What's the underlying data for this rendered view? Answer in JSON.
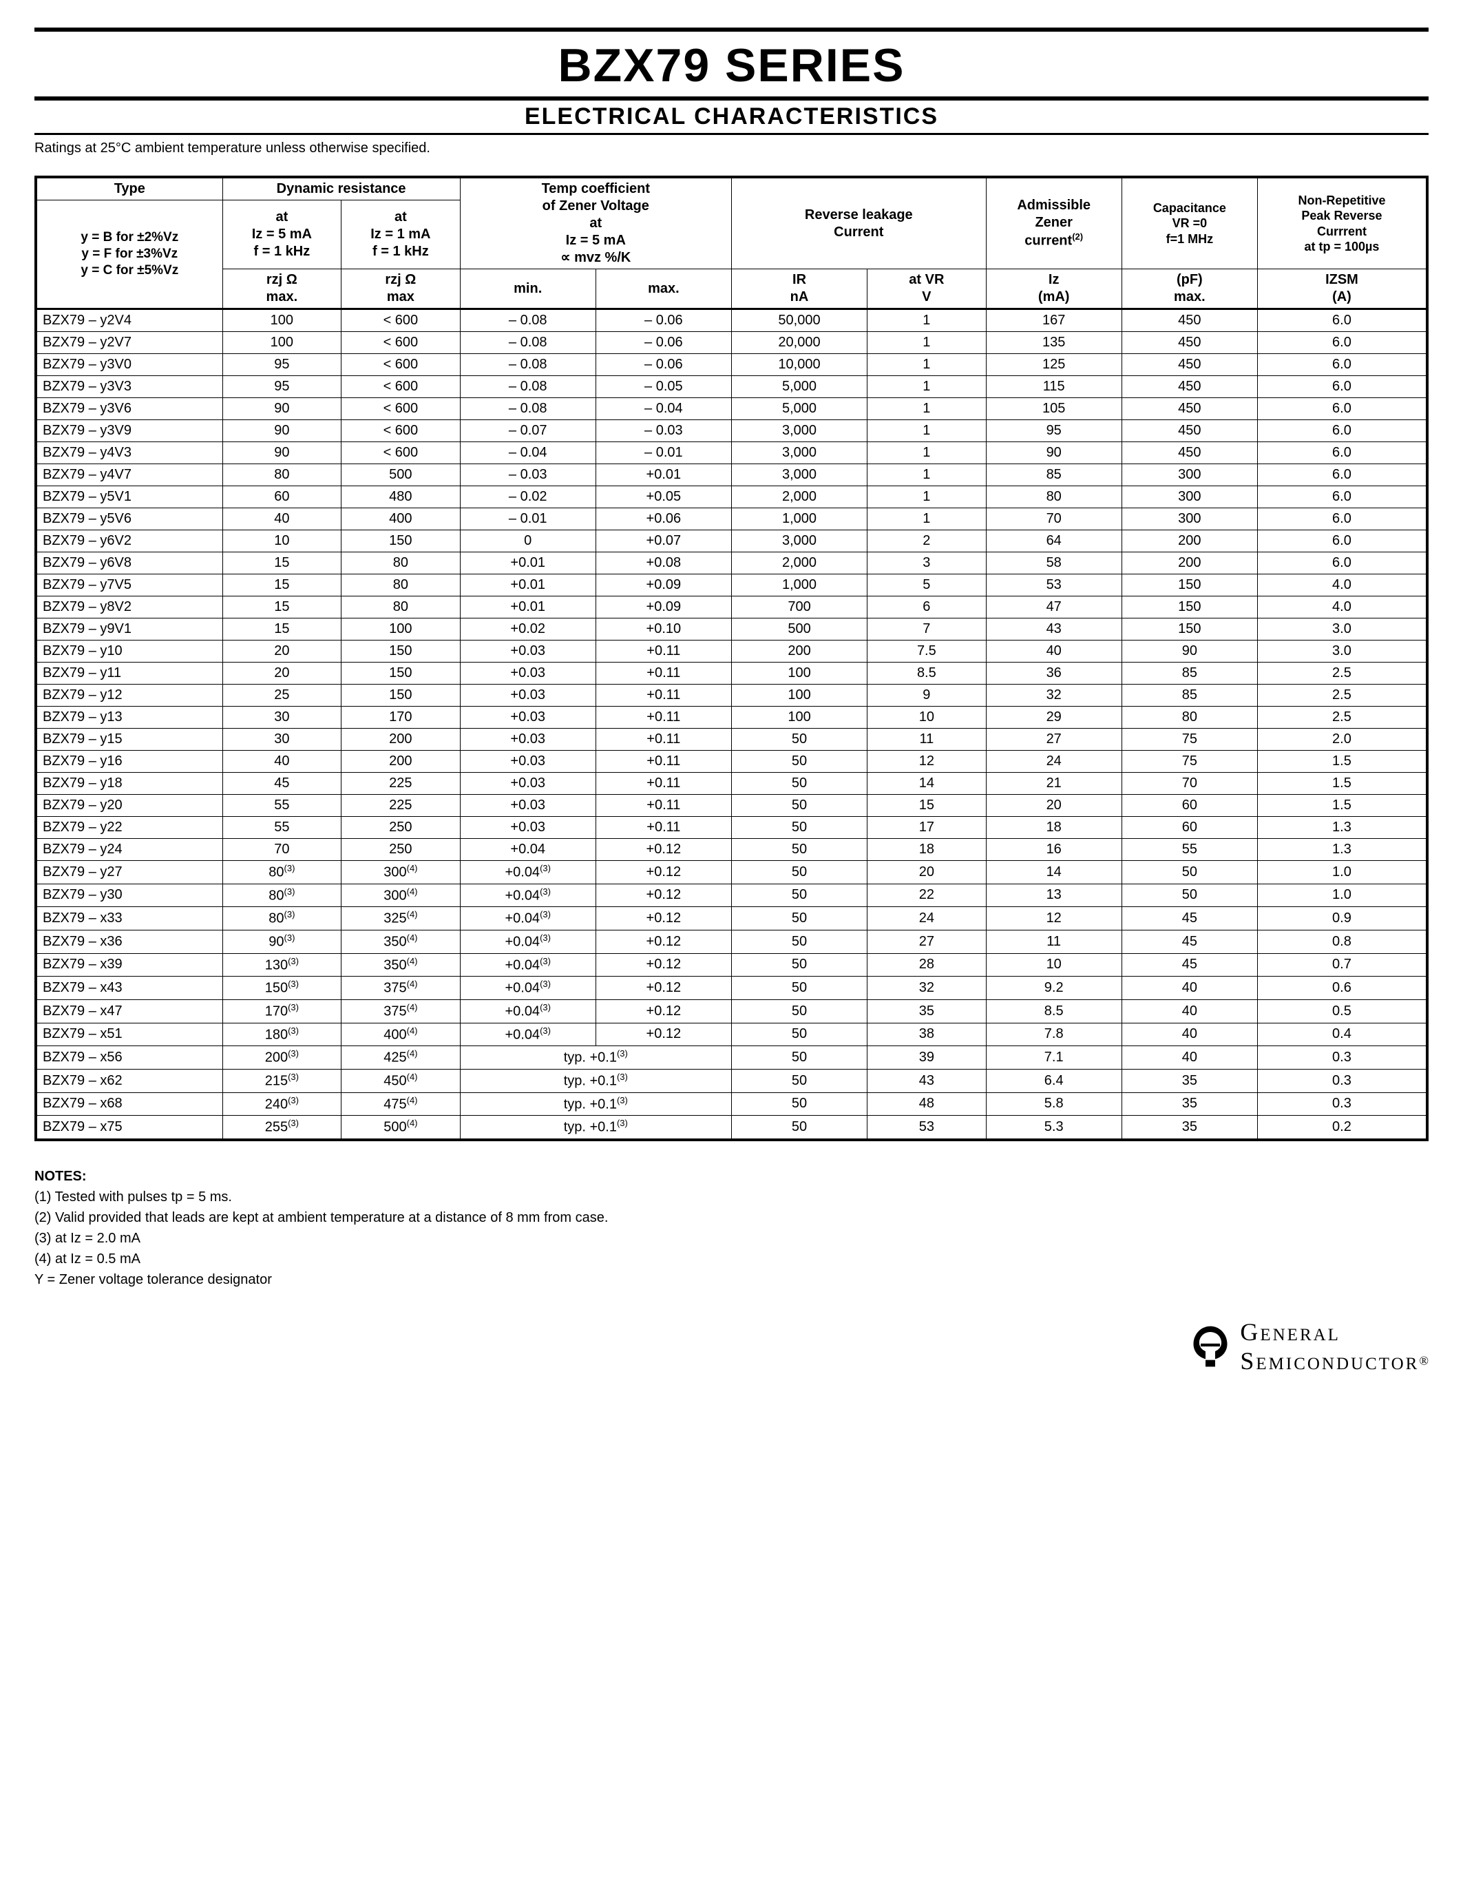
{
  "title": "BZX79 SERIES",
  "subtitle": "ELECTRICAL CHARACTERISTICS",
  "ratings_note": "Ratings at 25°C ambient temperature unless otherwise specified.",
  "headers": {
    "type": "Type",
    "tolerance_b": "y = B for ±2%Vz",
    "tolerance_f": "y = F for ±3%Vz",
    "tolerance_c": "y = C for ±5%Vz",
    "dyn_res": "Dynamic resistance",
    "dyn_at1_l1": "at",
    "dyn_at1_l2": "Iz = 5 mA",
    "dyn_at1_l3": "f = 1 kHz",
    "dyn_at2_l1": "at",
    "dyn_at2_l2": "Iz = 1 mA",
    "dyn_at2_l3": "f = 1 kHz",
    "rzj1": "rzj Ω",
    "rzj1_max": "max.",
    "rzj2": "rzj Ω",
    "rzj2_max": "max",
    "temp_coef": "Temp coefficient",
    "temp_coef2": "of Zener Voltage",
    "temp_at": "at",
    "temp_iz": "Iz = 5 mA",
    "temp_prop": "∝ mvz %/K",
    "temp_min": "min.",
    "temp_max": "max.",
    "rev_leak": "Reverse leakage",
    "rev_leak2": "Current",
    "ir": "IR",
    "ir_unit": "nA",
    "vr": "at VR",
    "vr_unit": "V",
    "adm": "Admissible",
    "adm2": "Zener",
    "adm3": "current",
    "adm_sup": "(2)",
    "iz": "Iz",
    "iz_unit": "(mA)",
    "cap": "Capacitance",
    "cap2": "VR =0",
    "cap3": "f=1 MHz",
    "cap_unit1": "(pF)",
    "cap_unit2": "max.",
    "nrp": "Non-Repetitive",
    "nrp2": "Peak Reverse",
    "nrp3": "Currrent",
    "nrp4": "at tp = 100µs",
    "izsm": "IZSM",
    "izsm_unit": "(A)"
  },
  "rows": [
    {
      "type": "BZX79 – y2V4",
      "r5": "100",
      "r1": "< 600",
      "tmin": "– 0.08",
      "tmax": "– 0.06",
      "ir": "50,000",
      "vr": "1",
      "iz": "167",
      "cap": "450",
      "izsm": "6.0"
    },
    {
      "type": "BZX79 – y2V7",
      "r5": "100",
      "r1": "< 600",
      "tmin": "– 0.08",
      "tmax": "– 0.06",
      "ir": "20,000",
      "vr": "1",
      "iz": "135",
      "cap": "450",
      "izsm": "6.0"
    },
    {
      "type": "BZX79 – y3V0",
      "r5": "95",
      "r1": "< 600",
      "tmin": "– 0.08",
      "tmax": "– 0.06",
      "ir": "10,000",
      "vr": "1",
      "iz": "125",
      "cap": "450",
      "izsm": "6.0"
    },
    {
      "type": "BZX79 – y3V3",
      "r5": "95",
      "r1": "< 600",
      "tmin": "– 0.08",
      "tmax": "– 0.05",
      "ir": "5,000",
      "vr": "1",
      "iz": "115",
      "cap": "450",
      "izsm": "6.0"
    },
    {
      "type": "BZX79 – y3V6",
      "r5": "90",
      "r1": "< 600",
      "tmin": "– 0.08",
      "tmax": "– 0.04",
      "ir": "5,000",
      "vr": "1",
      "iz": "105",
      "cap": "450",
      "izsm": "6.0"
    },
    {
      "type": "BZX79 – y3V9",
      "r5": "90",
      "r1": "< 600",
      "tmin": "– 0.07",
      "tmax": "– 0.03",
      "ir": "3,000",
      "vr": "1",
      "iz": "95",
      "cap": "450",
      "izsm": "6.0"
    },
    {
      "type": "BZX79 – y4V3",
      "r5": "90",
      "r1": "< 600",
      "tmin": "– 0.04",
      "tmax": "– 0.01",
      "ir": "3,000",
      "vr": "1",
      "iz": "90",
      "cap": "450",
      "izsm": "6.0"
    },
    {
      "type": "BZX79 – y4V7",
      "r5": "80",
      "r1": "500",
      "tmin": "– 0.03",
      "tmax": "+0.01",
      "ir": "3,000",
      "vr": "1",
      "iz": "85",
      "cap": "300",
      "izsm": "6.0"
    },
    {
      "type": "BZX79 – y5V1",
      "r5": "60",
      "r1": "480",
      "tmin": "– 0.02",
      "tmax": "+0.05",
      "ir": "2,000",
      "vr": "1",
      "iz": "80",
      "cap": "300",
      "izsm": "6.0"
    },
    {
      "type": "BZX79 – y5V6",
      "r5": "40",
      "r1": "400",
      "tmin": "– 0.01",
      "tmax": "+0.06",
      "ir": "1,000",
      "vr": "1",
      "iz": "70",
      "cap": "300",
      "izsm": "6.0"
    },
    {
      "type": "BZX79 – y6V2",
      "r5": "10",
      "r1": "150",
      "tmin": "0",
      "tmax": "+0.07",
      "ir": "3,000",
      "vr": "2",
      "iz": "64",
      "cap": "200",
      "izsm": "6.0"
    },
    {
      "type": "BZX79 – y6V8",
      "r5": "15",
      "r1": "80",
      "tmin": "+0.01",
      "tmax": "+0.08",
      "ir": "2,000",
      "vr": "3",
      "iz": "58",
      "cap": "200",
      "izsm": "6.0"
    },
    {
      "type": "BZX79 – y7V5",
      "r5": "15",
      "r1": "80",
      "tmin": "+0.01",
      "tmax": "+0.09",
      "ir": "1,000",
      "vr": "5",
      "iz": "53",
      "cap": "150",
      "izsm": "4.0"
    },
    {
      "type": "BZX79 – y8V2",
      "r5": "15",
      "r1": "80",
      "tmin": "+0.01",
      "tmax": "+0.09",
      "ir": "700",
      "vr": "6",
      "iz": "47",
      "cap": "150",
      "izsm": "4.0"
    },
    {
      "type": "BZX79 – y9V1",
      "r5": "15",
      "r1": "100",
      "tmin": "+0.02",
      "tmax": "+0.10",
      "ir": "500",
      "vr": "7",
      "iz": "43",
      "cap": "150",
      "izsm": "3.0"
    },
    {
      "type": "BZX79 – y10",
      "r5": "20",
      "r1": "150",
      "tmin": "+0.03",
      "tmax": "+0.11",
      "ir": "200",
      "vr": "7.5",
      "iz": "40",
      "cap": "90",
      "izsm": "3.0"
    },
    {
      "type": "BZX79 – y11",
      "r5": "20",
      "r1": "150",
      "tmin": "+0.03",
      "tmax": "+0.11",
      "ir": "100",
      "vr": "8.5",
      "iz": "36",
      "cap": "85",
      "izsm": "2.5"
    },
    {
      "type": "BZX79 – y12",
      "r5": "25",
      "r1": "150",
      "tmin": "+0.03",
      "tmax": "+0.11",
      "ir": "100",
      "vr": "9",
      "iz": "32",
      "cap": "85",
      "izsm": "2.5"
    },
    {
      "type": "BZX79 – y13",
      "r5": "30",
      "r1": "170",
      "tmin": "+0.03",
      "tmax": "+0.11",
      "ir": "100",
      "vr": "10",
      "iz": "29",
      "cap": "80",
      "izsm": "2.5"
    },
    {
      "type": "BZX79 – y15",
      "r5": "30",
      "r1": "200",
      "tmin": "+0.03",
      "tmax": "+0.11",
      "ir": "50",
      "vr": "11",
      "iz": "27",
      "cap": "75",
      "izsm": "2.0"
    },
    {
      "type": "BZX79 – y16",
      "r5": "40",
      "r1": "200",
      "tmin": "+0.03",
      "tmax": "+0.11",
      "ir": "50",
      "vr": "12",
      "iz": "24",
      "cap": "75",
      "izsm": "1.5"
    },
    {
      "type": "BZX79 – y18",
      "r5": "45",
      "r1": "225",
      "tmin": "+0.03",
      "tmax": "+0.11",
      "ir": "50",
      "vr": "14",
      "iz": "21",
      "cap": "70",
      "izsm": "1.5"
    },
    {
      "type": "BZX79 – y20",
      "r5": "55",
      "r1": "225",
      "tmin": "+0.03",
      "tmax": "+0.11",
      "ir": "50",
      "vr": "15",
      "iz": "20",
      "cap": "60",
      "izsm": "1.5"
    },
    {
      "type": "BZX79 – y22",
      "r5": "55",
      "r1": "250",
      "tmin": "+0.03",
      "tmax": "+0.11",
      "ir": "50",
      "vr": "17",
      "iz": "18",
      "cap": "60",
      "izsm": "1.3"
    },
    {
      "type": "BZX79 – y24",
      "r5": "70",
      "r1": "250",
      "tmin": "+0.04",
      "tmax": "+0.12",
      "ir": "50",
      "vr": "18",
      "iz": "16",
      "cap": "55",
      "izsm": "1.3"
    },
    {
      "type": "BZX79 – y27",
      "r5": "80",
      "r5s": "(3)",
      "r1": "300",
      "r1s": "(4)",
      "tmin": "+0.04",
      "tmins": "(3)",
      "tmax": "+0.12",
      "ir": "50",
      "vr": "20",
      "iz": "14",
      "cap": "50",
      "izsm": "1.0"
    },
    {
      "type": "BZX79 – y30",
      "r5": "80",
      "r5s": "(3)",
      "r1": "300",
      "r1s": "(4)",
      "tmin": "+0.04",
      "tmins": "(3)",
      "tmax": "+0.12",
      "ir": "50",
      "vr": "22",
      "iz": "13",
      "cap": "50",
      "izsm": "1.0"
    },
    {
      "type": "BZX79 – x33",
      "r5": "80",
      "r5s": "(3)",
      "r1": "325",
      "r1s": "(4)",
      "tmin": "+0.04",
      "tmins": "(3)",
      "tmax": "+0.12",
      "ir": "50",
      "vr": "24",
      "iz": "12",
      "cap": "45",
      "izsm": "0.9"
    },
    {
      "type": "BZX79 – x36",
      "r5": "90",
      "r5s": "(3)",
      "r1": "350",
      "r1s": "(4)",
      "tmin": "+0.04",
      "tmins": "(3)",
      "tmax": "+0.12",
      "ir": "50",
      "vr": "27",
      "iz": "11",
      "cap": "45",
      "izsm": "0.8"
    },
    {
      "type": "BZX79 – x39",
      "r5": "130",
      "r5s": "(3)",
      "r1": "350",
      "r1s": "(4)",
      "tmin": "+0.04",
      "tmins": "(3)",
      "tmax": "+0.12",
      "ir": "50",
      "vr": "28",
      "iz": "10",
      "cap": "45",
      "izsm": "0.7"
    },
    {
      "type": "BZX79 – x43",
      "r5": "150",
      "r5s": "(3)",
      "r1": "375",
      "r1s": "(4)",
      "tmin": "+0.04",
      "tmins": "(3)",
      "tmax": "+0.12",
      "ir": "50",
      "vr": "32",
      "iz": "9.2",
      "cap": "40",
      "izsm": "0.6"
    },
    {
      "type": "BZX79 – x47",
      "r5": "170",
      "r5s": "(3)",
      "r1": "375",
      "r1s": "(4)",
      "tmin": "+0.04",
      "tmins": "(3)",
      "tmax": "+0.12",
      "ir": "50",
      "vr": "35",
      "iz": "8.5",
      "cap": "40",
      "izsm": "0.5"
    },
    {
      "type": "BZX79 – x51",
      "r5": "180",
      "r5s": "(3)",
      "r1": "400",
      "r1s": "(4)",
      "tmin": "+0.04",
      "tmins": "(3)",
      "tmax": "+0.12",
      "ir": "50",
      "vr": "38",
      "iz": "7.8",
      "cap": "40",
      "izsm": "0.4"
    },
    {
      "type": "BZX79 – x56",
      "r5": "200",
      "r5s": "(3)",
      "r1": "425",
      "r1s": "(4)",
      "typ": "typ. +0.1",
      "typs": "(3)",
      "ir": "50",
      "vr": "39",
      "iz": "7.1",
      "cap": "40",
      "izsm": "0.3"
    },
    {
      "type": "BZX79 – x62",
      "r5": "215",
      "r5s": "(3)",
      "r1": "450",
      "r1s": "(4)",
      "typ": "typ. +0.1",
      "typs": "(3)",
      "ir": "50",
      "vr": "43",
      "iz": "6.4",
      "cap": "35",
      "izsm": "0.3"
    },
    {
      "type": "BZX79 – x68",
      "r5": "240",
      "r5s": "(3)",
      "r1": "475",
      "r1s": "(4)",
      "typ": "typ. +0.1",
      "typs": "(3)",
      "ir": "50",
      "vr": "48",
      "iz": "5.8",
      "cap": "35",
      "izsm": "0.3"
    },
    {
      "type": "BZX79 – x75",
      "r5": "255",
      "r5s": "(3)",
      "r1": "500",
      "r1s": "(4)",
      "typ": "typ. +0.1",
      "typs": "(3)",
      "ir": "50",
      "vr": "53",
      "iz": "5.3",
      "cap": "35",
      "izsm": "0.2"
    }
  ],
  "notes": {
    "title": "NOTES:",
    "n1": "(1) Tested with pulses tp = 5 ms.",
    "n2": "(2) Valid provided that leads are kept at ambient temperature at a distance of 8 mm from case.",
    "n3": "(3) at Iz = 2.0 mA",
    "n4": "(4) at Iz = 0.5 mA",
    "n5": "Y = Zener voltage tolerance designator"
  },
  "brand1": "General",
  "brand2": "Semiconductor",
  "reg": "®"
}
